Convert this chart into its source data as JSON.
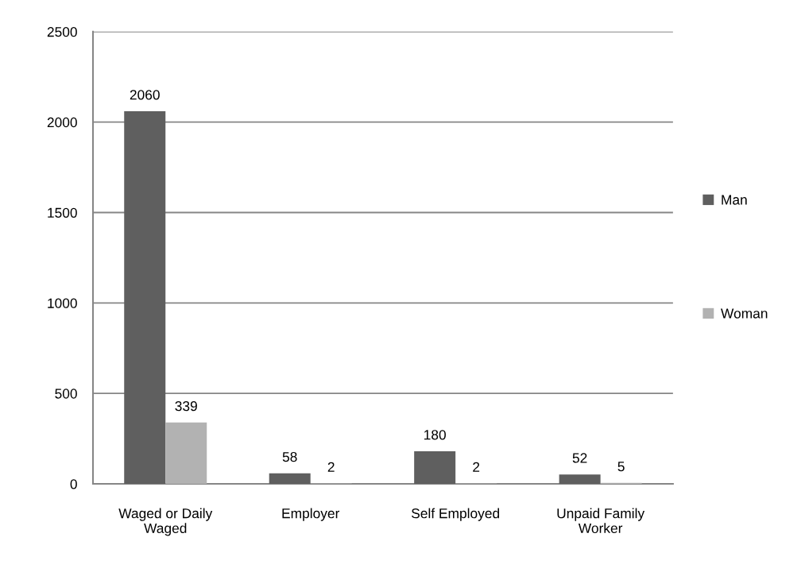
{
  "chart_data": {
    "type": "bar",
    "categories": [
      "Waged or Daily\nWaged",
      "Employer",
      "Self Employed",
      "Unpaid Family\nWorker"
    ],
    "series": [
      {
        "name": "Man",
        "color": "#5f5f5f",
        "values": [
          2060,
          58,
          180,
          52
        ]
      },
      {
        "name": "Woman",
        "color": "#b2b2b2",
        "values": [
          339,
          2,
          2,
          5
        ]
      }
    ],
    "ylim": [
      0,
      2500
    ],
    "yticks": [
      0,
      500,
      1000,
      1500,
      2000,
      2500
    ],
    "grid": "y",
    "legend": "right",
    "data_labels": true
  }
}
